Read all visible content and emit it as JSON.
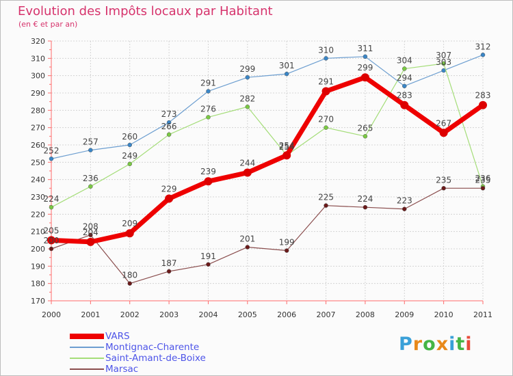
{
  "page": {
    "title": "Evolution des Impôts locaux par Habitant",
    "subtitle": "(en € et par an)",
    "logo": "Proxiti",
    "logo_colors": [
      "#3aa0d8",
      "#e8891a",
      "#45b545",
      "#e8891a",
      "#3aa0d8",
      "#45b545",
      "#e84b3a"
    ]
  },
  "chart_data": {
    "type": "line",
    "x": [
      "2000",
      "2001",
      "2002",
      "2003",
      "2004",
      "2005",
      "2006",
      "2007",
      "2008",
      "2009",
      "2010",
      "2011"
    ],
    "ylim": [
      170,
      320
    ],
    "yticks": [
      170,
      180,
      190,
      200,
      210,
      220,
      230,
      240,
      250,
      260,
      270,
      280,
      290,
      300,
      310,
      320
    ],
    "grid": true,
    "legend_position": "bottom-left",
    "series": [
      {
        "name": "Montignac-Charente",
        "color": "#6c9ed0",
        "marker": "#3a86c7",
        "values": [
          252,
          257,
          260,
          273,
          291,
          299,
          301,
          310,
          311,
          294,
          303,
          312
        ]
      },
      {
        "name": "Saint-Amant-de-Boixe",
        "color": "#a4dd78",
        "marker": "#7ac943",
        "values": [
          224,
          236,
          249,
          266,
          276,
          282,
          254,
          270,
          265,
          304,
          307,
          236
        ]
      },
      {
        "name": "Marsac",
        "color": "#8a4d4d",
        "marker": "#6b1a1a",
        "values": [
          200,
          208,
          180,
          187,
          191,
          201,
          199,
          225,
          224,
          223,
          235,
          235
        ]
      },
      {
        "name": "VARS",
        "color": "#ee0000",
        "marker": "#dd0000",
        "values": [
          205,
          204,
          209,
          229,
          239,
          244,
          254,
          291,
          299,
          283,
          267,
          283
        ]
      }
    ],
    "legend_order": [
      "VARS",
      "Montignac-Charente",
      "Saint-Amant-de-Boixe",
      "Marsac"
    ]
  }
}
